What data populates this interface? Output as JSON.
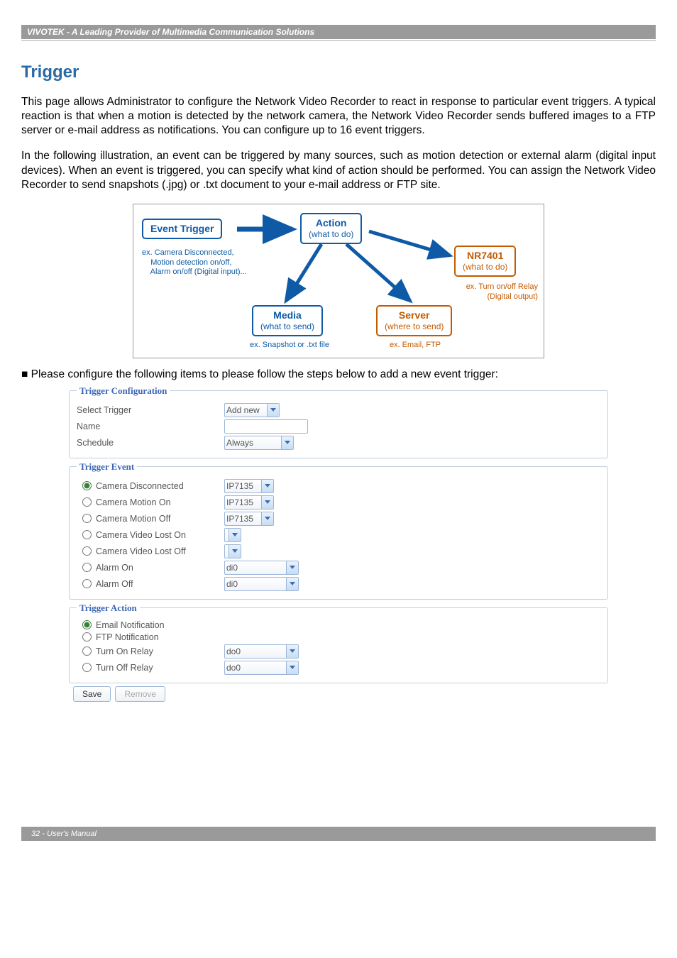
{
  "header": {
    "brand_line": "VIVOTEK - A Leading Provider of Multimedia Communication Solutions"
  },
  "section": {
    "title": "Trigger",
    "para1": "This page allows Administrator to configure the Network Video Recorder to react in response to particular event triggers. A typical reaction is that when a motion is detected by the network camera, the Network Video Recorder sends buffered images to a FTP server or e-mail address as notifications. You can configure up to 16 event triggers.",
    "para2": "In the following illustration, an event can be triggered by many sources, such as motion detection or external alarm (digital input devices). When an event is triggered, you can specify what kind of action should be performed. You can assign the Network Video Recorder to send snapshots (.jpg) or .txt document to your e-mail address or FTP site.",
    "step_line": "■ Please configure the following items to please follow the steps below to add a new event trigger:"
  },
  "diagram": {
    "colors": {
      "event": "#0e5aa7",
      "action": "#0e5aa7",
      "nvr": "#c45a00",
      "media": "#0e5aa7",
      "server": "#c45a00"
    },
    "event": {
      "title": "Event Trigger",
      "caption": "ex. Camera Disconnected,\n    Motion detection on/off,\n    Alarm on/off (Digital input)..."
    },
    "action": {
      "title": "Action",
      "sub": "(what to do)"
    },
    "nvr": {
      "title": "NR7401",
      "sub": "(what to do)",
      "caption": "ex. Turn on/off Relay\n(Digital output)"
    },
    "media": {
      "title": "Media",
      "sub": "(what to send)",
      "caption": "ex. Snapshot or .txt file"
    },
    "server": {
      "title": "Server",
      "sub": "(where to send)",
      "caption": "ex. Email, FTP"
    }
  },
  "config": {
    "legend1": "Trigger Configuration",
    "select_trigger_label": "Select Trigger",
    "select_trigger_value": "Add new",
    "name_label": "Name",
    "name_value": "",
    "schedule_label": "Schedule",
    "schedule_value": "Always",
    "legend2": "Trigger Event",
    "events": [
      {
        "label": "Camera Disconnected",
        "value": "IP7135",
        "checked": true,
        "sel_w": 70
      },
      {
        "label": "Camera Motion On",
        "value": "IP7135",
        "checked": false,
        "sel_w": 70
      },
      {
        "label": "Camera Motion Off",
        "value": "IP7135",
        "checked": false,
        "sel_w": 70
      },
      {
        "label": "Camera Video Lost On",
        "value": "",
        "checked": false,
        "sel_w": 22
      },
      {
        "label": "Camera Video Lost Off",
        "value": "",
        "checked": false,
        "sel_w": 22
      },
      {
        "label": "Alarm On",
        "value": "di0",
        "checked": false,
        "sel_w": 105
      },
      {
        "label": "Alarm Off",
        "value": "di0",
        "checked": false,
        "sel_w": 105
      }
    ],
    "legend3": "Trigger Action",
    "actions": [
      {
        "label": "Email Notification",
        "checked": true,
        "has_sel": false
      },
      {
        "label": "FTP Notification",
        "checked": false,
        "has_sel": false
      },
      {
        "label": "Turn On Relay",
        "checked": false,
        "has_sel": true,
        "value": "do0",
        "sel_w": 105
      },
      {
        "label": "Turn Off Relay",
        "checked": false,
        "has_sel": true,
        "value": "do0",
        "sel_w": 105
      }
    ],
    "save_label": "Save",
    "remove_label": "Remove"
  },
  "footer": {
    "text": "32 - User's Manual"
  }
}
